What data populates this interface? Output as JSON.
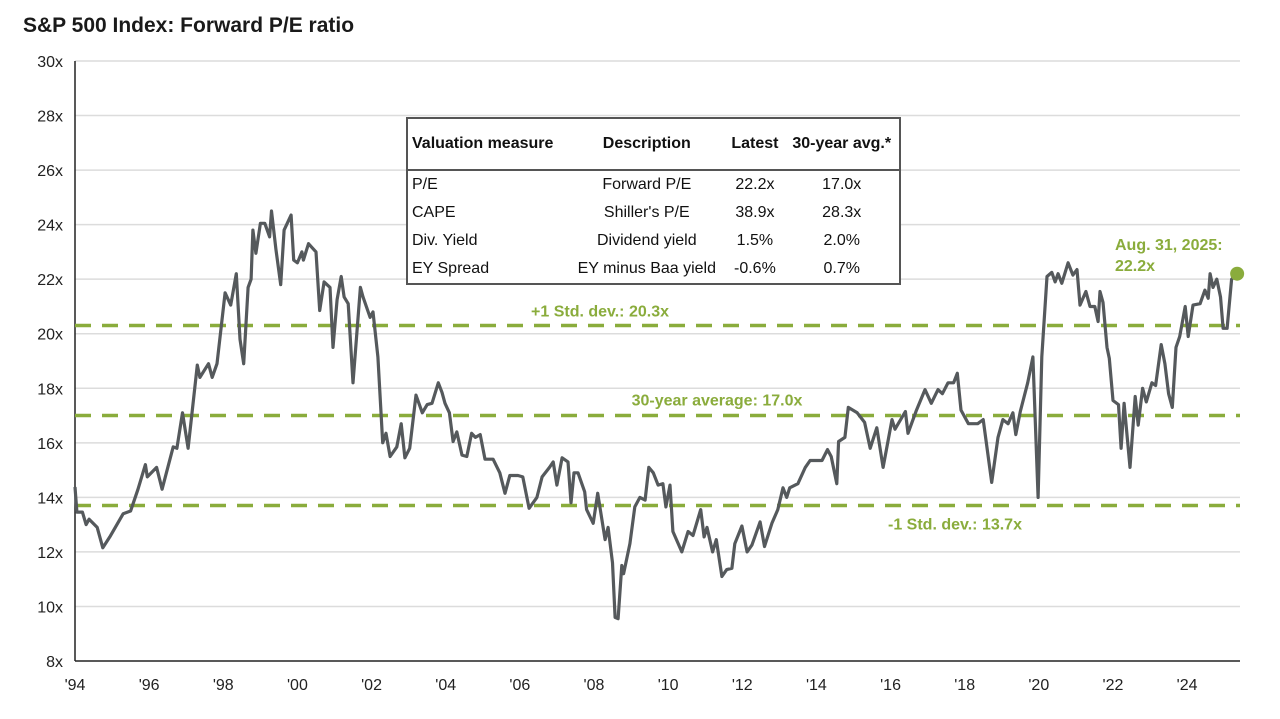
{
  "chart_data": {
    "type": "line",
    "title": "S&P 500 Index: Forward P/E ratio",
    "ylim": [
      8,
      30
    ],
    "yticks": [
      8,
      10,
      12,
      14,
      16,
      18,
      20,
      22,
      24,
      26,
      28,
      30
    ],
    "ytick_labels": [
      "8x",
      "10x",
      "12x",
      "14x",
      "16x",
      "18x",
      "20x",
      "22x",
      "24x",
      "26x",
      "28x",
      "30x"
    ],
    "xlim": [
      1994,
      2025.5
    ],
    "xticks": [
      1994,
      1996,
      1998,
      2000,
      2002,
      2004,
      2006,
      2008,
      2010,
      2012,
      2014,
      2016,
      2018,
      2020,
      2022,
      2024
    ],
    "xtick_labels": [
      "'94",
      "'96",
      "'98",
      "'00",
      "'02",
      "'04",
      "'06",
      "'08",
      "'10",
      "'12",
      "'14",
      "'16",
      "'18",
      "'20",
      "'22",
      "'24"
    ],
    "grid": "horizontal",
    "colors": {
      "series": "#55595c",
      "reference": "#8aac3c",
      "grid": "#dcdcdc"
    },
    "reference_lines": [
      {
        "value": 20.3,
        "label": "+1 Std. dev.: 20.3x"
      },
      {
        "value": 17.0,
        "label": "30-year average: 17.0x"
      },
      {
        "value": 13.7,
        "label": "-1 Std. dev.: 13.7x"
      }
    ],
    "endpoint": {
      "x": 2025.35,
      "y": 22.2,
      "label_line1": "Aug. 31, 2025:",
      "label_line2": "22.2x"
    },
    "series": [
      {
        "points": [
          [
            1994.0,
            14.38
          ],
          [
            1994.05,
            13.46
          ],
          [
            1994.2,
            13.46
          ],
          [
            1994.3,
            13.0
          ],
          [
            1994.38,
            13.2
          ],
          [
            1994.6,
            12.9
          ],
          [
            1994.75,
            12.15
          ],
          [
            1994.94,
            12.55
          ],
          [
            1995.3,
            13.4
          ],
          [
            1995.5,
            13.5
          ],
          [
            1995.7,
            14.3
          ],
          [
            1995.9,
            15.2
          ],
          [
            1995.95,
            14.75
          ],
          [
            1996.2,
            15.1
          ],
          [
            1996.35,
            14.3
          ],
          [
            1996.65,
            15.85
          ],
          [
            1996.75,
            15.8
          ],
          [
            1996.9,
            17.1
          ],
          [
            1997.05,
            15.8
          ],
          [
            1997.3,
            18.85
          ],
          [
            1997.37,
            18.4
          ],
          [
            1997.6,
            18.9
          ],
          [
            1997.7,
            18.4
          ],
          [
            1997.83,
            18.9
          ],
          [
            1998.05,
            21.5
          ],
          [
            1998.2,
            21.05
          ],
          [
            1998.35,
            22.2
          ],
          [
            1998.45,
            19.8
          ],
          [
            1998.55,
            18.9
          ],
          [
            1998.67,
            21.7
          ],
          [
            1998.75,
            22.0
          ],
          [
            1998.8,
            23.8
          ],
          [
            1998.88,
            22.95
          ],
          [
            1999.0,
            24.05
          ],
          [
            1999.12,
            24.05
          ],
          [
            1999.25,
            23.55
          ],
          [
            1999.3,
            24.5
          ],
          [
            1999.42,
            23.1
          ],
          [
            1999.55,
            21.8
          ],
          [
            1999.64,
            23.8
          ],
          [
            1999.83,
            24.35
          ],
          [
            1999.9,
            22.7
          ],
          [
            2000.0,
            22.6
          ],
          [
            2000.12,
            23.0
          ],
          [
            2000.16,
            22.7
          ],
          [
            2000.3,
            23.3
          ],
          [
            2000.5,
            23.0
          ],
          [
            2000.6,
            20.85
          ],
          [
            2000.72,
            21.9
          ],
          [
            2000.88,
            21.7
          ],
          [
            2000.96,
            19.5
          ],
          [
            2001.07,
            21.25
          ],
          [
            2001.18,
            22.1
          ],
          [
            2001.26,
            21.35
          ],
          [
            2001.37,
            21.1
          ],
          [
            2001.5,
            18.2
          ],
          [
            2001.7,
            21.7
          ],
          [
            2001.77,
            21.35
          ],
          [
            2001.96,
            20.6
          ],
          [
            2002.04,
            20.8
          ],
          [
            2002.17,
            19.15
          ],
          [
            2002.3,
            16.0
          ],
          [
            2002.39,
            16.35
          ],
          [
            2002.5,
            15.5
          ],
          [
            2002.68,
            15.85
          ],
          [
            2002.8,
            16.7
          ],
          [
            2002.9,
            15.45
          ],
          [
            2003.03,
            15.8
          ],
          [
            2003.2,
            17.75
          ],
          [
            2003.37,
            17.1
          ],
          [
            2003.5,
            17.4
          ],
          [
            2003.63,
            17.45
          ],
          [
            2003.8,
            18.2
          ],
          [
            2003.9,
            17.85
          ],
          [
            2003.98,
            17.45
          ],
          [
            2004.1,
            17.1
          ],
          [
            2004.2,
            16.05
          ],
          [
            2004.3,
            16.4
          ],
          [
            2004.44,
            15.55
          ],
          [
            2004.57,
            15.5
          ],
          [
            2004.7,
            16.35
          ],
          [
            2004.8,
            16.2
          ],
          [
            2004.93,
            16.3
          ],
          [
            2005.06,
            15.4
          ],
          [
            2005.28,
            15.4
          ],
          [
            2005.46,
            14.9
          ],
          [
            2005.6,
            14.15
          ],
          [
            2005.73,
            14.8
          ],
          [
            2005.95,
            14.8
          ],
          [
            2006.08,
            14.75
          ],
          [
            2006.25,
            13.6
          ],
          [
            2006.46,
            14.0
          ],
          [
            2006.6,
            14.75
          ],
          [
            2006.8,
            15.1
          ],
          [
            2006.9,
            15.3
          ],
          [
            2007.0,
            14.45
          ],
          [
            2007.14,
            15.45
          ],
          [
            2007.3,
            15.3
          ],
          [
            2007.38,
            13.8
          ],
          [
            2007.46,
            14.9
          ],
          [
            2007.57,
            14.9
          ],
          [
            2007.75,
            14.2
          ],
          [
            2007.8,
            13.55
          ],
          [
            2007.98,
            13.05
          ],
          [
            2008.1,
            14.15
          ],
          [
            2008.3,
            12.45
          ],
          [
            2008.38,
            12.9
          ],
          [
            2008.5,
            11.6
          ],
          [
            2008.57,
            9.6
          ],
          [
            2008.65,
            9.55
          ],
          [
            2008.75,
            11.5
          ],
          [
            2008.8,
            11.2
          ],
          [
            2008.97,
            12.3
          ],
          [
            2009.1,
            13.65
          ],
          [
            2009.24,
            14.0
          ],
          [
            2009.38,
            13.9
          ],
          [
            2009.48,
            15.1
          ],
          [
            2009.6,
            14.9
          ],
          [
            2009.73,
            14.45
          ],
          [
            2009.86,
            14.5
          ],
          [
            2009.94,
            13.65
          ],
          [
            2010.05,
            14.45
          ],
          [
            2010.13,
            12.75
          ],
          [
            2010.37,
            12.0
          ],
          [
            2010.54,
            12.75
          ],
          [
            2010.67,
            12.6
          ],
          [
            2010.88,
            13.55
          ],
          [
            2010.97,
            12.55
          ],
          [
            2011.05,
            12.9
          ],
          [
            2011.2,
            12.0
          ],
          [
            2011.3,
            12.45
          ],
          [
            2011.45,
            11.1
          ],
          [
            2011.58,
            11.35
          ],
          [
            2011.72,
            11.4
          ],
          [
            2011.8,
            12.3
          ],
          [
            2011.99,
            12.95
          ],
          [
            2012.13,
            12.0
          ],
          [
            2012.26,
            12.25
          ],
          [
            2012.48,
            13.1
          ],
          [
            2012.6,
            12.2
          ],
          [
            2012.8,
            13.05
          ],
          [
            2012.96,
            13.55
          ],
          [
            2013.1,
            14.35
          ],
          [
            2013.2,
            14.0
          ],
          [
            2013.28,
            14.35
          ],
          [
            2013.5,
            14.5
          ],
          [
            2013.7,
            15.1
          ],
          [
            2013.83,
            15.35
          ],
          [
            2014.0,
            15.35
          ],
          [
            2014.15,
            15.35
          ],
          [
            2014.3,
            15.75
          ],
          [
            2014.4,
            15.5
          ],
          [
            2014.55,
            14.5
          ],
          [
            2014.6,
            16.05
          ],
          [
            2014.77,
            16.2
          ],
          [
            2014.86,
            17.3
          ],
          [
            2015.1,
            17.1
          ],
          [
            2015.3,
            16.75
          ],
          [
            2015.45,
            15.8
          ],
          [
            2015.63,
            16.55
          ],
          [
            2015.8,
            15.1
          ],
          [
            2016.04,
            16.85
          ],
          [
            2016.12,
            16.5
          ],
          [
            2016.4,
            17.15
          ],
          [
            2016.47,
            16.35
          ],
          [
            2016.7,
            17.2
          ],
          [
            2016.93,
            17.95
          ],
          [
            2017.1,
            17.45
          ],
          [
            2017.28,
            17.95
          ],
          [
            2017.4,
            17.8
          ],
          [
            2017.55,
            18.2
          ],
          [
            2017.7,
            18.2
          ],
          [
            2017.8,
            18.55
          ],
          [
            2017.9,
            17.2
          ],
          [
            2018.1,
            16.7
          ],
          [
            2018.23,
            16.7
          ],
          [
            2018.35,
            16.7
          ],
          [
            2018.5,
            16.85
          ],
          [
            2018.73,
            14.55
          ],
          [
            2018.9,
            16.2
          ],
          [
            2019.03,
            16.85
          ],
          [
            2019.17,
            16.7
          ],
          [
            2019.3,
            17.1
          ],
          [
            2019.38,
            16.3
          ],
          [
            2019.5,
            17.15
          ],
          [
            2019.7,
            18.2
          ],
          [
            2019.84,
            19.15
          ],
          [
            2019.98,
            14.0
          ],
          [
            2020.08,
            19.15
          ],
          [
            2020.22,
            22.1
          ],
          [
            2020.35,
            22.25
          ],
          [
            2020.44,
            21.9
          ],
          [
            2020.52,
            22.2
          ],
          [
            2020.62,
            21.85
          ],
          [
            2020.79,
            22.6
          ],
          [
            2020.92,
            22.15
          ],
          [
            2021.03,
            22.35
          ],
          [
            2021.11,
            21.05
          ],
          [
            2021.27,
            21.55
          ],
          [
            2021.38,
            21.0
          ],
          [
            2021.51,
            21.0
          ],
          [
            2021.6,
            20.45
          ],
          [
            2021.65,
            21.55
          ],
          [
            2021.73,
            21.15
          ],
          [
            2021.84,
            19.5
          ],
          [
            2021.9,
            19.1
          ],
          [
            2022.0,
            17.55
          ],
          [
            2022.15,
            17.4
          ],
          [
            2022.22,
            15.8
          ],
          [
            2022.3,
            17.45
          ],
          [
            2022.46,
            15.1
          ],
          [
            2022.6,
            17.7
          ],
          [
            2022.68,
            16.65
          ],
          [
            2022.8,
            18.0
          ],
          [
            2022.9,
            17.5
          ],
          [
            2023.05,
            18.2
          ],
          [
            2023.15,
            18.1
          ],
          [
            2023.3,
            19.6
          ],
          [
            2023.4,
            18.9
          ],
          [
            2023.5,
            17.8
          ],
          [
            2023.6,
            17.3
          ],
          [
            2023.7,
            19.5
          ],
          [
            2023.8,
            19.9
          ],
          [
            2023.95,
            21.0
          ],
          [
            2024.03,
            19.9
          ],
          [
            2024.16,
            21.05
          ],
          [
            2024.35,
            21.1
          ],
          [
            2024.48,
            21.6
          ],
          [
            2024.57,
            21.3
          ],
          [
            2024.62,
            22.2
          ],
          [
            2024.7,
            21.7
          ],
          [
            2024.8,
            22.0
          ],
          [
            2024.9,
            21.35
          ],
          [
            2024.97,
            20.2
          ],
          [
            2025.08,
            20.2
          ],
          [
            2025.2,
            22.0
          ],
          [
            2025.35,
            22.2
          ]
        ]
      }
    ]
  },
  "table": {
    "headers": [
      "Valuation measure",
      "Description",
      "Latest",
      "30-year avg.*"
    ],
    "rows": [
      [
        "P/E",
        "Forward P/E",
        "22.2x",
        "17.0x"
      ],
      [
        "CAPE",
        "Shiller's P/E",
        "38.9x",
        "28.3x"
      ],
      [
        "Div. Yield",
        "Dividend yield",
        "1.5%",
        "2.0%"
      ],
      [
        "EY Spread",
        "EY minus Baa yield",
        "-0.6%",
        "0.7%"
      ]
    ]
  }
}
